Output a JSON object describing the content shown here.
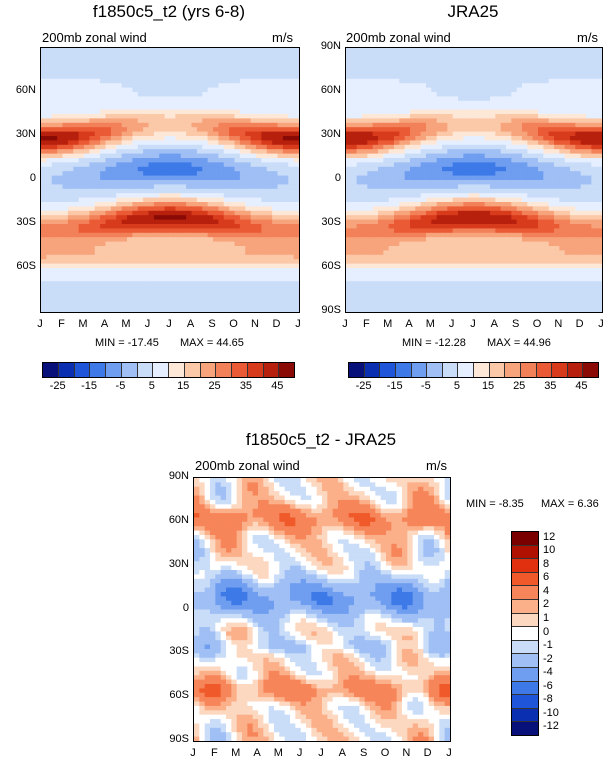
{
  "chart_data": [
    {
      "type": "heatmap",
      "title": "f1850c5_t2 (yrs 6-8)",
      "subtitle_left": "200mb zonal wind",
      "subtitle_right": "m/s",
      "x_ticks": [
        "J",
        "F",
        "M",
        "A",
        "M",
        "J",
        "J",
        "A",
        "S",
        "O",
        "N",
        "D",
        "J"
      ],
      "y_ticks": [
        "60N",
        "30N",
        "0",
        "30S",
        "60S"
      ],
      "y_range": [
        -90,
        90
      ],
      "min_label": "MIN = -17.45",
      "max_label": "MAX =  44.65",
      "min": -17.45,
      "max": 44.65,
      "colorbar_labels": [
        "-25",
        "-15",
        "-5",
        "5",
        "15",
        "25",
        "35",
        "45"
      ]
    },
    {
      "type": "heatmap",
      "title": "JRA25",
      "subtitle_left": "200mb zonal wind",
      "subtitle_right": "m/s",
      "x_ticks": [
        "J",
        "F",
        "M",
        "A",
        "M",
        "J",
        "J",
        "A",
        "S",
        "O",
        "N",
        "D",
        "J"
      ],
      "y_ticks": [
        "90N",
        "60N",
        "30N",
        "0",
        "30S",
        "60S",
        "90S"
      ],
      "y_range": [
        -90,
        90
      ],
      "min_label": "MIN = -12.28",
      "max_label": "MAX =  44.96",
      "min": -12.28,
      "max": 44.96,
      "colorbar_labels": [
        "-25",
        "-15",
        "-5",
        "5",
        "15",
        "25",
        "35",
        "45"
      ]
    },
    {
      "type": "heatmap",
      "title": "f1850c5_t2 - JRA25",
      "subtitle_left": "200mb zonal wind",
      "subtitle_right": "m/s",
      "x_ticks": [
        "J",
        "F",
        "M",
        "A",
        "M",
        "J",
        "J",
        "A",
        "S",
        "O",
        "N",
        "D",
        "J"
      ],
      "y_ticks": [
        "90N",
        "60N",
        "30N",
        "0",
        "30S",
        "60S",
        "90S"
      ],
      "y_range": [
        -90,
        90
      ],
      "min_label": "MIN =  -8.35",
      "max_label": "MAX =   6.36",
      "min": -8.35,
      "max": 6.36,
      "colorbar_labels": [
        "12",
        "10",
        "8",
        "6",
        "4",
        "2",
        "1",
        "0",
        "-1",
        "-2",
        "-4",
        "-6",
        "-8",
        "-10",
        "-12"
      ]
    }
  ],
  "colors": {
    "abs_scale": [
      "#08107a",
      "#0a2fb0",
      "#1f55d8",
      "#3d7ae8",
      "#6f9df0",
      "#9fbff5",
      "#c9dcf8",
      "#e6efff",
      "#fde8d8",
      "#fbc8a8",
      "#f7a47c",
      "#f28058",
      "#ea5a34",
      "#d83a1c",
      "#b8200e",
      "#8a0a05"
    ],
    "diff_scale": [
      "#7a0000",
      "#b01000",
      "#e03010",
      "#f05a2a",
      "#f7855a",
      "#fbb08a",
      "#fdd8c0",
      "#ffffff",
      "#c9dcf8",
      "#9fbff5",
      "#6f9df0",
      "#3d7ae8",
      "#1f55d8",
      "#0a2fb0",
      "#08107a"
    ]
  }
}
